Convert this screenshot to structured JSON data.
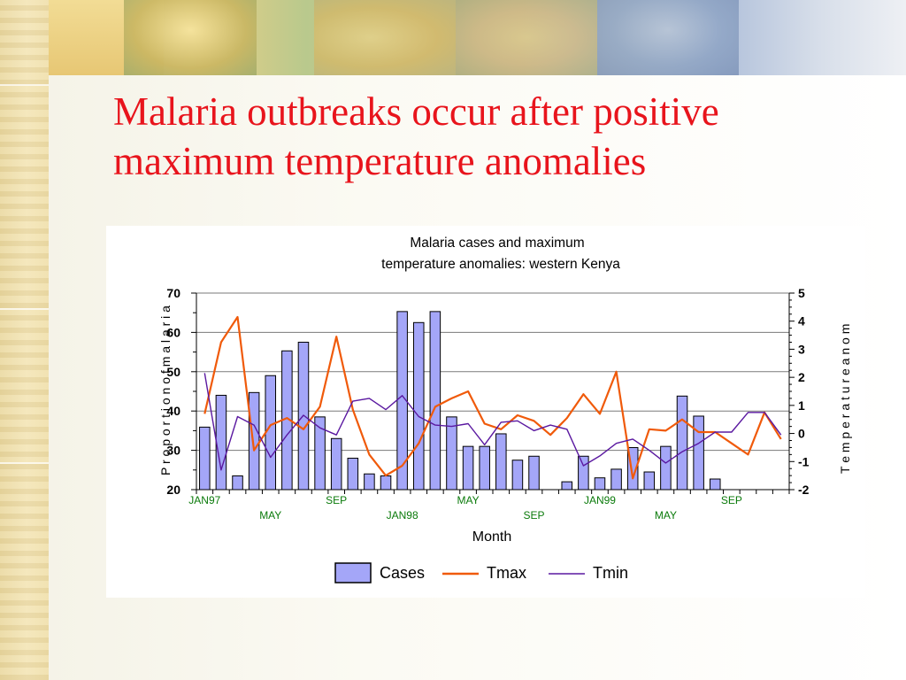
{
  "slide": {
    "title": "Malaria outbreaks occur after positive maximum temperature anomalies"
  },
  "colors": {
    "title": "#e8141c",
    "bars": "#a4a6f8",
    "bar_stroke": "#000000",
    "tmax": "#f05a0a",
    "tmin": "#5a18a0",
    "month_labels": "#0a7a0a"
  },
  "chart_data": {
    "type": "bar",
    "title_line1": "Malaria  cases and  maximum",
    "title_line2": "temperature anomalies: western Kenya",
    "xlabel": "Month",
    "ylabel_left": "P r o p o r t i o n   o f   m a l a r i a",
    "ylabel_right": "T e m p e r a t u r e   a n o m",
    "ylim_left": [
      20,
      70
    ],
    "ylim_right": [
      -2,
      5
    ],
    "yticks_left": [
      "20",
      "30",
      "40",
      "50",
      "60",
      "70"
    ],
    "yticks_right": [
      "-2",
      "-1",
      "0",
      "1",
      "2",
      "3",
      "4",
      "5"
    ],
    "month_labels_row1": [
      {
        "label": "JAN97",
        "index": 0
      },
      {
        "label": "SEP",
        "index": 8
      },
      {
        "label": "MAY",
        "index": 16
      },
      {
        "label": "JAN99",
        "index": 24
      },
      {
        "label": "SEP",
        "index": 32
      }
    ],
    "month_labels_row2": [
      {
        "label": "MAY",
        "index": 4
      },
      {
        "label": "JAN98",
        "index": 12
      },
      {
        "label": "SEP",
        "index": 20
      },
      {
        "label": "MAY",
        "index": 28
      }
    ],
    "series": [
      {
        "name": "Cases",
        "values": [
          35.9,
          44,
          23.5,
          44.7,
          49,
          55.3,
          57.5,
          38.5,
          33,
          28,
          24,
          23.5,
          65.3,
          62.5,
          65.3,
          38.5,
          31,
          31,
          34.2,
          27.5,
          28.5,
          20,
          22,
          28.5,
          23,
          25.2,
          30.7,
          24.5,
          31,
          43.8,
          38.7,
          22.7,
          0,
          0,
          0,
          0
        ]
      },
      {
        "name": "Tmax",
        "values": [
          0.7,
          3.25,
          4.15,
          -0.6,
          0.3,
          0.55,
          0.15,
          0.95,
          3.45,
          0.85,
          -0.75,
          -1.5,
          -1.15,
          -0.35,
          0.95,
          1.25,
          1.5,
          0.35,
          0.15,
          0.65,
          0.45,
          -0.05,
          0.55,
          1.4,
          0.7,
          2.2,
          -1.6,
          0.15,
          0.1,
          0.5,
          0.05,
          0.05,
          -0.35,
          -0.75,
          0.75,
          -0.2
        ]
      },
      {
        "name": "Tmin",
        "values": [
          2.15,
          -1.3,
          0.6,
          0.3,
          -0.85,
          -0.05,
          0.65,
          0.2,
          -0.05,
          1.15,
          1.25,
          0.85,
          1.35,
          0.6,
          0.3,
          0.25,
          0.35,
          -0.4,
          0.4,
          0.45,
          0.1,
          0.3,
          0.15,
          -1.15,
          -0.8,
          -0.35,
          -0.2,
          -0.6,
          -1.05,
          -0.65,
          -0.35,
          0.05,
          0.05,
          0.75,
          0.75,
          -0.05
        ]
      }
    ],
    "legend": {
      "position": "bottom",
      "entries": [
        "Cases",
        "Tmax",
        "Tmin"
      ]
    },
    "grid": "horizontal"
  }
}
